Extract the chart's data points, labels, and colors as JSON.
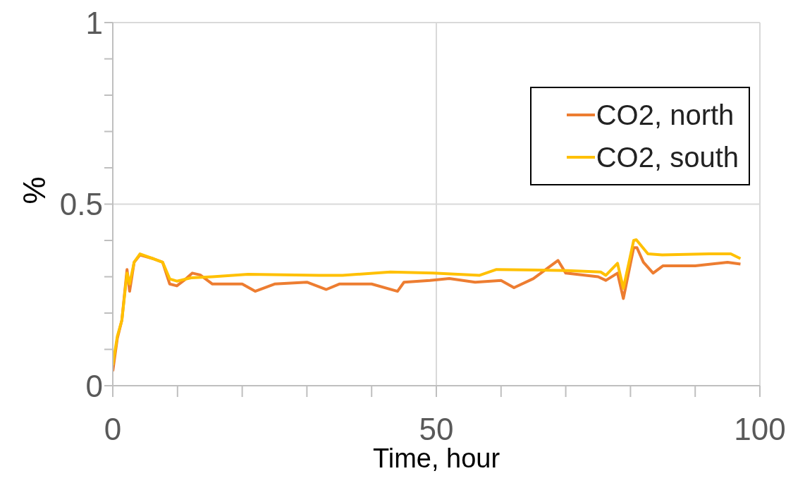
{
  "chart_data": {
    "type": "line",
    "xlabel": "Time, hour",
    "ylabel": "%",
    "xlim": [
      0,
      100
    ],
    "ylim": [
      0,
      1
    ],
    "xticks": [
      0,
      {
        "value": 10,
        "label": null
      },
      {
        "value": 20,
        "label": null
      },
      {
        "value": 30,
        "label": null
      },
      {
        "value": 40,
        "label": null
      },
      50,
      {
        "value": 60,
        "label": null
      },
      {
        "value": 70,
        "label": null
      },
      {
        "value": 80,
        "label": null
      },
      {
        "value": 90,
        "label": null
      },
      100
    ],
    "yticks": [
      0,
      {
        "value": 0.1,
        "label": null
      },
      {
        "value": 0.2,
        "label": null
      },
      {
        "value": 0.3,
        "label": null
      },
      {
        "value": 0.4,
        "label": null
      },
      0.5,
      {
        "value": 0.6,
        "label": null
      },
      {
        "value": 0.7,
        "label": null
      },
      {
        "value": 0.8,
        "label": null
      },
      {
        "value": 0.9,
        "label": null
      },
      1
    ],
    "grid": true,
    "legend": "top right",
    "marker": "none",
    "line_style": "solid",
    "series": [
      {
        "name": "CO2, north",
        "color": "#ed7d31",
        "x": [
          0,
          0.7,
          1.4,
          2.2,
          2.6,
          3.3,
          4.2,
          6.2,
          7.7,
          8.8,
          9.9,
          11,
          12.3,
          13.5,
          15.4,
          20,
          22,
          25,
          30,
          33,
          35,
          40,
          44,
          45,
          49,
          52,
          56,
          60,
          62,
          65,
          68.8,
          70,
          75,
          76.2,
          78,
          78.9,
          80.5,
          81,
          82,
          83.5,
          85,
          90,
          95,
          97
        ],
        "values": [
          0.04,
          0.13,
          0.18,
          0.32,
          0.26,
          0.34,
          0.36,
          0.35,
          0.34,
          0.28,
          0.275,
          0.29,
          0.31,
          0.305,
          0.28,
          0.28,
          0.26,
          0.28,
          0.285,
          0.265,
          0.28,
          0.28,
          0.26,
          0.285,
          0.29,
          0.295,
          0.285,
          0.29,
          0.27,
          0.295,
          0.345,
          0.31,
          0.3,
          0.29,
          0.31,
          0.24,
          0.38,
          0.38,
          0.34,
          0.31,
          0.33,
          0.33,
          0.34,
          0.335
        ]
      },
      {
        "name": "CO2, south",
        "color": "#ffc000",
        "x": [
          0,
          0.7,
          1.4,
          2.2,
          2.6,
          3.3,
          4.2,
          6.2,
          7.7,
          8.8,
          9.9,
          12.1,
          15.4,
          20.9,
          31.9,
          35.5,
          42.9,
          49.5,
          56.7,
          59.3,
          70.3,
          75.4,
          76.2,
          78,
          78.9,
          80.5,
          80.9,
          82.7,
          84.9,
          92.2,
          95.5,
          97
        ],
        "values": [
          0.057,
          0.136,
          0.18,
          0.31,
          0.28,
          0.34,
          0.363,
          0.35,
          0.34,
          0.294,
          0.288,
          0.297,
          0.3,
          0.307,
          0.304,
          0.304,
          0.313,
          0.31,
          0.304,
          0.32,
          0.317,
          0.313,
          0.304,
          0.337,
          0.268,
          0.4,
          0.402,
          0.363,
          0.36,
          0.363,
          0.363,
          0.35
        ]
      }
    ]
  }
}
